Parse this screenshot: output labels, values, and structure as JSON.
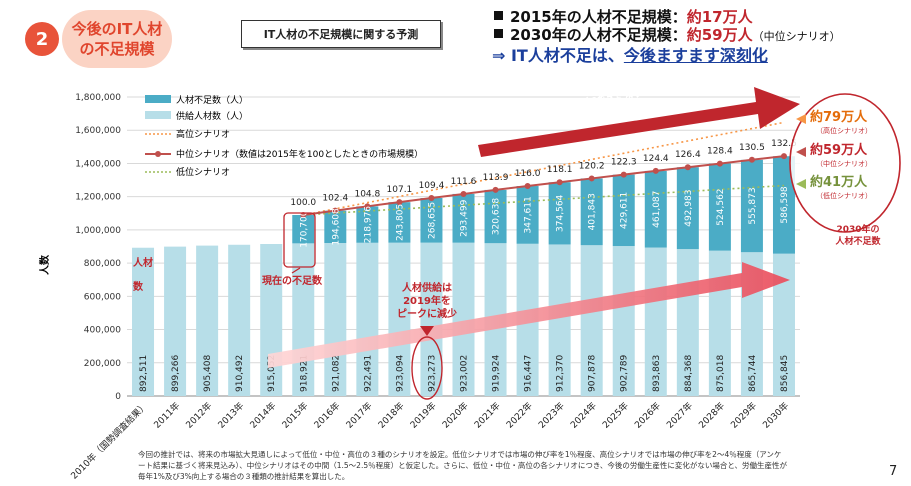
{
  "badge": {
    "number": "2",
    "line1": "今後のIT人材",
    "line2": "の不足規模"
  },
  "slide_title": "IT人材の不足規模に関する予測",
  "summary": {
    "line1": {
      "prefix": "2015年の人材不足規模：",
      "value": "約17万人"
    },
    "line2": {
      "prefix": "2030年の人材不足規模：",
      "value": "約59万人",
      "note": "（中位シナリオ）"
    },
    "conclusion": {
      "prefix": "⇒ IT人材不足は、",
      "underlined": "今後ますます深刻化"
    }
  },
  "legend": {
    "shortage": "人材不足数（人）",
    "supply": "供給人材数（人）",
    "high": "高位シナリオ",
    "mid": "中位シナリオ（数値は2015年を100としたときの市場規模）",
    "low": "低位シナリオ"
  },
  "annotations": {
    "upper_arrow": [
      "ITニーズの拡大により",
      "市場規模は今後も拡大"
    ],
    "current_shortage": "現在の不足数",
    "supply_peak": [
      "人材供給は",
      "2019年を",
      "ピークに減少"
    ],
    "shortage_2030": [
      "2030年の",
      "人材不足数"
    ],
    "jinzaisu": [
      "人材",
      "数"
    ],
    "right_high": {
      "value": "約79万人",
      "label": "（高位シナリオ）"
    },
    "right_mid": {
      "value": "約59万人",
      "label": "（中位シナリオ）"
    },
    "right_low": {
      "value": "約41万人",
      "label": "（低位シナリオ）"
    }
  },
  "footnote": "今回の推計では、将来の市場拡大見通しによって低位・中位・高位の３種のシナリオを設定。低位シナリオでは市場の伸び率を1％程度、高位シナリオでは市場の伸び率を2～4％程度（アンケート結果に基づく将来見込み）、中位シナリオはその中間（1.5～2.5％程度）と仮定した。さらに、低位・中位・高位の各シナリオにつき、今後の労働生産性に変化がない場合と、労働生産性が毎年1%及び3%向上する場合の３種類の推計結果を算出した。",
  "page_number": "7",
  "colors": {
    "supply": "#b7dee8",
    "shortage": "#4bacc6",
    "mid_line": "#c0504d",
    "high_line": "#f79646",
    "low_line": "#9bbb59",
    "accent_red": "#c0262d"
  },
  "chart_data": {
    "type": "bar",
    "stacked": true,
    "ylabel": "人数",
    "ylim": [
      0,
      1800000
    ],
    "yticks": [
      "0",
      "200,000",
      "400,000",
      "600,000",
      "800,000",
      "1,000,000",
      "1,200,000",
      "1,400,000",
      "1,600,000",
      "1,800,000"
    ],
    "categories": [
      "2010年（国勢調査結果）",
      "2011年",
      "2012年",
      "2013年",
      "2014年",
      "2015年",
      "2016年",
      "2017年",
      "2018年",
      "2019年",
      "2020年",
      "2021年",
      "2022年",
      "2023年",
      "2024年",
      "2025年",
      "2026年",
      "2027年",
      "2028年",
      "2029年",
      "2030年"
    ],
    "series": [
      {
        "name": "供給人材数（人）",
        "values": [
          892511,
          899266,
          905408,
          910492,
          915052,
          918921,
          921082,
          922491,
          923094,
          923273,
          923002,
          919924,
          916447,
          912370,
          907878,
          902789,
          893863,
          884368,
          875018,
          865744,
          856845
        ],
        "labels": [
          "892,511",
          "899,266",
          "905,408",
          "910,492",
          "915,052",
          "918,921",
          "921,082",
          "922,491",
          "923,094",
          "923,273",
          "923,002",
          "919,924",
          "916,447",
          "912,370",
          "907,878",
          "902,789",
          "893,863",
          "884,368",
          "875,018",
          "865,744",
          "856,845"
        ]
      },
      {
        "name": "人材不足数（人）",
        "values": [
          null,
          null,
          null,
          null,
          null,
          170700,
          194608,
          218976,
          243805,
          268655,
          293499,
          320638,
          347611,
          374564,
          401843,
          429611,
          461087,
          492983,
          524562,
          555873,
          586598
        ],
        "labels": [
          "",
          "",
          "",
          "",
          "",
          "170,700",
          "194,608",
          "218,976",
          "243,805",
          "268,655",
          "293,499",
          "320,638",
          "347,611",
          "374,564",
          "401,843",
          "429,611",
          "461,087",
          "492,983",
          "524,562",
          "555,873",
          "586,598"
        ]
      },
      {
        "name": "中位シナリオ（数値は2015年を100としたときの市場規模）",
        "index": [
          null,
          null,
          null,
          null,
          null,
          100.0,
          102.4,
          104.8,
          107.1,
          109.4,
          111.6,
          113.9,
          116.0,
          118.1,
          120.2,
          122.3,
          124.4,
          126.4,
          128.4,
          130.5,
          132.5
        ],
        "labels": [
          "",
          "",
          "",
          "",
          "",
          "100.0",
          "102.4",
          "104.8",
          "107.1",
          "109.4",
          "111.6",
          "113.9",
          "116.0",
          "118.1",
          "120.2",
          "122.3",
          "124.4",
          "126.4",
          "128.4",
          "130.5",
          "132.5"
        ]
      },
      {
        "name": "高位シナリオ",
        "endpoints": [
          1089621,
          1647000
        ]
      },
      {
        "name": "低位シナリオ",
        "endpoints": [
          1089621,
          1267000
        ]
      }
    ],
    "legend_position": "top-left",
    "grid": true
  }
}
